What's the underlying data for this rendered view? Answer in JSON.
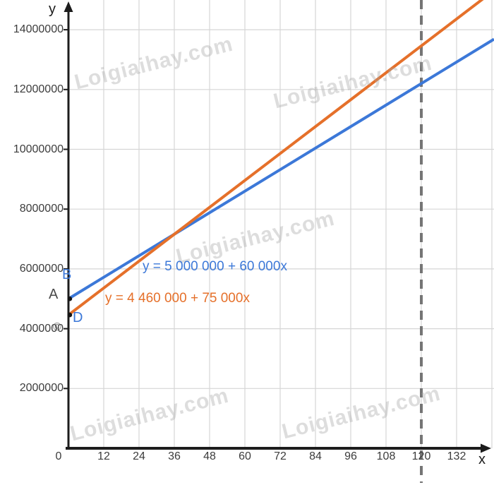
{
  "watermark": {
    "text": "Loigiaihay.com",
    "copyright_glyph": "©"
  },
  "axes": {
    "x_label": "x",
    "y_label": "y",
    "y_tick_labels": [
      "14000000",
      "12000000",
      "10000000",
      "8000000",
      "6000000",
      "4000000",
      "2000000"
    ],
    "x_tick_labels": [
      "0",
      "12",
      "24",
      "36",
      "48",
      "60",
      "72",
      "84",
      "96",
      "108",
      "120",
      "132"
    ]
  },
  "annotations": {
    "blue_equation": "y = 5 000 000 + 60 000x",
    "orange_equation": "y = 4 460 000 + 75 000x",
    "point_a": "A",
    "point_b": "B",
    "point_d": "D"
  },
  "colors": {
    "blue": "#3c78d8",
    "orange": "#e5702a",
    "grid": "#d6d6d6",
    "axis": "#1c1c1c",
    "dashed": "#757575",
    "point": "#141414"
  },
  "chart_data": {
    "type": "line",
    "title": "",
    "xlabel": "x",
    "ylabel": "y",
    "xlim": [
      0,
      144.7
    ],
    "ylim": [
      0,
      15000000
    ],
    "grid": true,
    "x_ticks": [
      0,
      12,
      24,
      36,
      48,
      60,
      72,
      84,
      96,
      108,
      120,
      132,
      144
    ],
    "y_ticks": [
      2000000,
      4000000,
      6000000,
      8000000,
      10000000,
      12000000,
      14000000
    ],
    "series": [
      {
        "name": "y = 5 000 000 + 60 000x",
        "intercept": 5000000,
        "slope": 60000,
        "color": "#3c78d8"
      },
      {
        "name": "y = 4 460 000 + 75 000x",
        "intercept": 4460000,
        "slope": 75000,
        "color": "#e5702a"
      }
    ],
    "intersection_point": {
      "x": 36,
      "y": 7160000
    },
    "dashed_vline_x": 120,
    "marked_points": [
      {
        "label": "B",
        "x": 0,
        "y": 5000000
      },
      {
        "label": "D",
        "x": 0,
        "y": 4460000
      }
    ]
  }
}
